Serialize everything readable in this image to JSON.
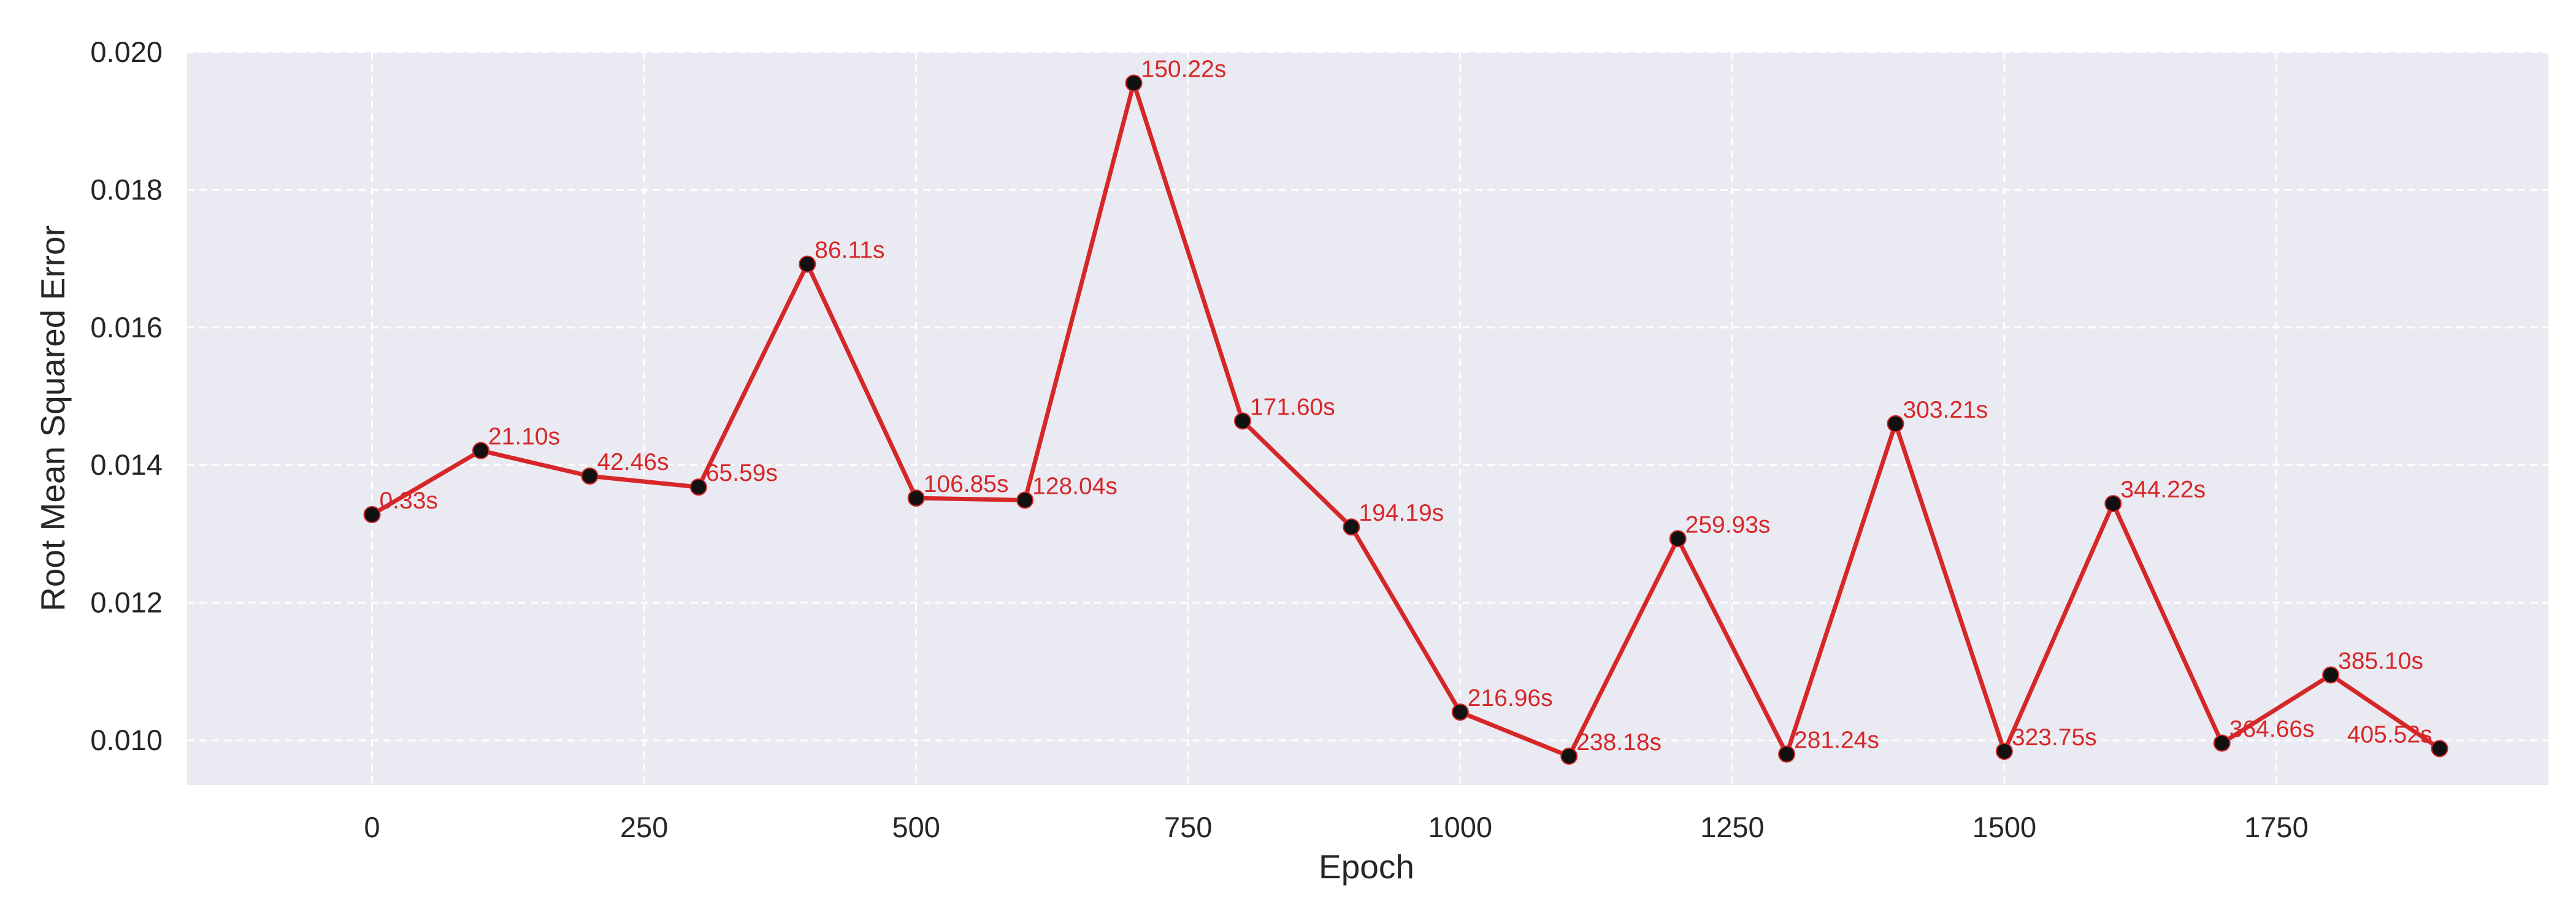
{
  "chart_data": {
    "type": "line",
    "title": "",
    "xlabel": "Epoch",
    "ylabel": "Root Mean Squared Error",
    "xlim": [
      -170,
      2000
    ],
    "ylim": [
      0.00935,
      0.02
    ],
    "xticks": [
      0,
      250,
      500,
      750,
      1000,
      1250,
      1500,
      1750
    ],
    "xtick_labels": [
      "0",
      "250",
      "500",
      "750",
      "1000",
      "1250",
      "1500",
      "1750"
    ],
    "yticks": [
      0.01,
      0.012,
      0.014,
      0.016,
      0.018,
      0.02
    ],
    "ytick_labels": [
      "0.010",
      "0.012",
      "0.014",
      "0.016",
      "0.018",
      "0.020"
    ],
    "grid": true,
    "legend": "none",
    "colors": {
      "line": "#d62728",
      "marker": "#111111",
      "label": "#d62728",
      "plot_background": "#eaeaf2",
      "grid": "#ffffff"
    },
    "series": [
      {
        "x": [
          0,
          100,
          200,
          300,
          400,
          500,
          600,
          700,
          800,
          900,
          1000,
          1100,
          1200,
          1300,
          1400,
          1500,
          1600,
          1700,
          1800,
          1900
        ],
        "y": [
          0.01328,
          0.01421,
          0.01384,
          0.01368,
          0.01692,
          0.01352,
          0.01349,
          0.01955,
          0.01464,
          0.0131,
          0.01041,
          0.00977,
          0.01293,
          0.0098,
          0.0146,
          0.00984,
          0.01344,
          0.00996,
          0.01095,
          0.00988
        ],
        "point_labels": [
          "0.33s",
          "21.10s",
          "42.46s",
          "65.59s",
          "86.11s",
          "106.85s",
          "128.04s",
          "150.22s",
          "171.60s",
          "194.19s",
          "216.96s",
          "238.18s",
          "259.93s",
          "281.24s",
          "303.21s",
          "323.75s",
          "344.22s",
          "364.66s",
          "385.10s",
          "405.52s"
        ]
      }
    ]
  }
}
